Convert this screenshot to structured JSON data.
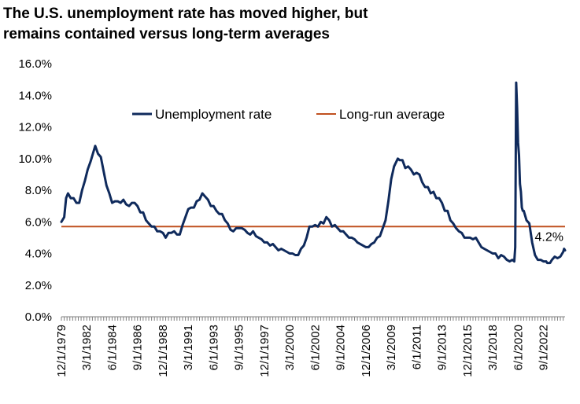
{
  "title": {
    "line1": "The U.S. unemployment rate has moved higher, but",
    "line2": "remains contained versus long-term averages"
  },
  "chart_data": {
    "type": "line",
    "title": "The U.S. unemployment rate has moved higher, but remains contained versus long-term averages",
    "xlabel": "",
    "ylabel": "",
    "ylim": [
      0,
      16
    ],
    "xlim": [
      "1979-12-01",
      "2024-08-01"
    ],
    "y_ticks": [
      "0.0%",
      "2.0%",
      "4.0%",
      "6.0%",
      "8.0%",
      "10.0%",
      "12.0%",
      "14.0%",
      "16.0%"
    ],
    "x_ticks": [
      "12/1/1979",
      "3/1/1982",
      "6/1/1984",
      "9/1/1986",
      "12/1/1988",
      "3/1/1991",
      "6/1/1993",
      "9/1/1995",
      "12/1/1997",
      "3/1/2000",
      "6/1/2002",
      "9/1/2004",
      "12/1/2006",
      "3/1/2009",
      "6/1/2011",
      "9/1/2013",
      "12/1/2015",
      "3/1/2018",
      "6/1/2020",
      "9/1/2022"
    ],
    "grid": false,
    "legend": "top-center",
    "end_label": "4.2%",
    "colors": {
      "unemployment": "#0f2a5c",
      "long_run": "#c0501f"
    },
    "series": [
      {
        "name": "Unemployment rate",
        "points": [
          [
            "1979-12-01",
            6.0
          ],
          [
            "1980-03-01",
            6.3
          ],
          [
            "1980-05-01",
            7.5
          ],
          [
            "1980-07-01",
            7.8
          ],
          [
            "1980-10-01",
            7.5
          ],
          [
            "1981-01-01",
            7.5
          ],
          [
            "1981-04-01",
            7.2
          ],
          [
            "1981-07-01",
            7.2
          ],
          [
            "1981-10-01",
            8.0
          ],
          [
            "1982-01-01",
            8.6
          ],
          [
            "1982-04-01",
            9.3
          ],
          [
            "1982-07-01",
            9.8
          ],
          [
            "1982-10-01",
            10.4
          ],
          [
            "1982-12-01",
            10.8
          ],
          [
            "1983-03-01",
            10.3
          ],
          [
            "1983-06-01",
            10.1
          ],
          [
            "1983-09-01",
            9.2
          ],
          [
            "1983-12-01",
            8.3
          ],
          [
            "1984-03-01",
            7.8
          ],
          [
            "1984-06-01",
            7.2
          ],
          [
            "1984-09-01",
            7.3
          ],
          [
            "1984-12-01",
            7.3
          ],
          [
            "1985-03-01",
            7.2
          ],
          [
            "1985-06-01",
            7.4
          ],
          [
            "1985-09-01",
            7.1
          ],
          [
            "1985-12-01",
            7.0
          ],
          [
            "1986-03-01",
            7.2
          ],
          [
            "1986-06-01",
            7.2
          ],
          [
            "1986-09-01",
            7.0
          ],
          [
            "1986-12-01",
            6.6
          ],
          [
            "1987-03-01",
            6.6
          ],
          [
            "1987-06-01",
            6.1
          ],
          [
            "1987-09-01",
            5.9
          ],
          [
            "1987-12-01",
            5.7
          ],
          [
            "1988-03-01",
            5.7
          ],
          [
            "1988-06-01",
            5.4
          ],
          [
            "1988-09-01",
            5.4
          ],
          [
            "1988-12-01",
            5.3
          ],
          [
            "1989-03-01",
            5.0
          ],
          [
            "1989-06-01",
            5.3
          ],
          [
            "1989-09-01",
            5.3
          ],
          [
            "1989-12-01",
            5.4
          ],
          [
            "1990-03-01",
            5.2
          ],
          [
            "1990-06-01",
            5.2
          ],
          [
            "1990-09-01",
            5.8
          ],
          [
            "1990-12-01",
            6.3
          ],
          [
            "1991-03-01",
            6.8
          ],
          [
            "1991-06-01",
            6.9
          ],
          [
            "1991-09-01",
            6.9
          ],
          [
            "1991-12-01",
            7.3
          ],
          [
            "1992-03-01",
            7.4
          ],
          [
            "1992-06-01",
            7.8
          ],
          [
            "1992-09-01",
            7.6
          ],
          [
            "1992-12-01",
            7.4
          ],
          [
            "1993-03-01",
            7.0
          ],
          [
            "1993-06-01",
            7.0
          ],
          [
            "1993-09-01",
            6.7
          ],
          [
            "1993-12-01",
            6.5
          ],
          [
            "1994-03-01",
            6.5
          ],
          [
            "1994-06-01",
            6.1
          ],
          [
            "1994-09-01",
            5.9
          ],
          [
            "1994-12-01",
            5.5
          ],
          [
            "1995-03-01",
            5.4
          ],
          [
            "1995-06-01",
            5.6
          ],
          [
            "1995-09-01",
            5.6
          ],
          [
            "1995-12-01",
            5.6
          ],
          [
            "1996-03-01",
            5.5
          ],
          [
            "1996-06-01",
            5.3
          ],
          [
            "1996-09-01",
            5.2
          ],
          [
            "1996-12-01",
            5.4
          ],
          [
            "1997-03-01",
            5.1
          ],
          [
            "1997-06-01",
            5.0
          ],
          [
            "1997-09-01",
            4.9
          ],
          [
            "1997-12-01",
            4.7
          ],
          [
            "1998-03-01",
            4.7
          ],
          [
            "1998-06-01",
            4.5
          ],
          [
            "1998-09-01",
            4.6
          ],
          [
            "1998-12-01",
            4.4
          ],
          [
            "1999-03-01",
            4.2
          ],
          [
            "1999-06-01",
            4.3
          ],
          [
            "1999-09-01",
            4.2
          ],
          [
            "1999-12-01",
            4.1
          ],
          [
            "2000-03-01",
            4.0
          ],
          [
            "2000-06-01",
            4.0
          ],
          [
            "2000-09-01",
            3.9
          ],
          [
            "2000-12-01",
            3.9
          ],
          [
            "2001-03-01",
            4.3
          ],
          [
            "2001-06-01",
            4.5
          ],
          [
            "2001-09-01",
            5.0
          ],
          [
            "2001-12-01",
            5.7
          ],
          [
            "2002-03-01",
            5.7
          ],
          [
            "2002-06-01",
            5.8
          ],
          [
            "2002-09-01",
            5.7
          ],
          [
            "2002-12-01",
            6.0
          ],
          [
            "2003-03-01",
            5.9
          ],
          [
            "2003-06-01",
            6.3
          ],
          [
            "2003-09-01",
            6.1
          ],
          [
            "2003-12-01",
            5.7
          ],
          [
            "2004-03-01",
            5.8
          ],
          [
            "2004-06-01",
            5.6
          ],
          [
            "2004-09-01",
            5.4
          ],
          [
            "2004-12-01",
            5.4
          ],
          [
            "2005-03-01",
            5.2
          ],
          [
            "2005-06-01",
            5.0
          ],
          [
            "2005-09-01",
            5.0
          ],
          [
            "2005-12-01",
            4.9
          ],
          [
            "2006-03-01",
            4.7
          ],
          [
            "2006-06-01",
            4.6
          ],
          [
            "2006-09-01",
            4.5
          ],
          [
            "2006-12-01",
            4.4
          ],
          [
            "2007-03-01",
            4.4
          ],
          [
            "2007-06-01",
            4.6
          ],
          [
            "2007-09-01",
            4.7
          ],
          [
            "2007-12-01",
            5.0
          ],
          [
            "2008-03-01",
            5.1
          ],
          [
            "2008-06-01",
            5.6
          ],
          [
            "2008-09-01",
            6.1
          ],
          [
            "2008-12-01",
            7.3
          ],
          [
            "2009-03-01",
            8.7
          ],
          [
            "2009-06-01",
            9.5
          ],
          [
            "2009-10-01",
            10.0
          ],
          [
            "2009-12-01",
            9.9
          ],
          [
            "2010-03-01",
            9.9
          ],
          [
            "2010-06-01",
            9.4
          ],
          [
            "2010-09-01",
            9.5
          ],
          [
            "2010-12-01",
            9.3
          ],
          [
            "2011-03-01",
            9.0
          ],
          [
            "2011-06-01",
            9.1
          ],
          [
            "2011-09-01",
            9.0
          ],
          [
            "2011-12-01",
            8.5
          ],
          [
            "2012-03-01",
            8.2
          ],
          [
            "2012-06-01",
            8.2
          ],
          [
            "2012-09-01",
            7.8
          ],
          [
            "2012-12-01",
            7.9
          ],
          [
            "2013-03-01",
            7.5
          ],
          [
            "2013-06-01",
            7.5
          ],
          [
            "2013-09-01",
            7.2
          ],
          [
            "2013-12-01",
            6.7
          ],
          [
            "2014-03-01",
            6.7
          ],
          [
            "2014-06-01",
            6.1
          ],
          [
            "2014-09-01",
            5.9
          ],
          [
            "2014-12-01",
            5.6
          ],
          [
            "2015-03-01",
            5.4
          ],
          [
            "2015-06-01",
            5.3
          ],
          [
            "2015-09-01",
            5.0
          ],
          [
            "2015-12-01",
            5.0
          ],
          [
            "2016-03-01",
            5.0
          ],
          [
            "2016-06-01",
            4.9
          ],
          [
            "2016-09-01",
            5.0
          ],
          [
            "2016-12-01",
            4.7
          ],
          [
            "2017-03-01",
            4.4
          ],
          [
            "2017-06-01",
            4.3
          ],
          [
            "2017-09-01",
            4.2
          ],
          [
            "2017-12-01",
            4.1
          ],
          [
            "2018-03-01",
            4.0
          ],
          [
            "2018-06-01",
            4.0
          ],
          [
            "2018-09-01",
            3.7
          ],
          [
            "2018-12-01",
            3.9
          ],
          [
            "2019-03-01",
            3.8
          ],
          [
            "2019-06-01",
            3.6
          ],
          [
            "2019-09-01",
            3.5
          ],
          [
            "2019-12-01",
            3.6
          ],
          [
            "2020-02-01",
            3.5
          ],
          [
            "2020-03-01",
            4.4
          ],
          [
            "2020-04-01",
            14.8
          ],
          [
            "2020-05-01",
            13.2
          ],
          [
            "2020-06-01",
            11.0
          ],
          [
            "2020-07-01",
            10.2
          ],
          [
            "2020-08-01",
            8.4
          ],
          [
            "2020-09-01",
            7.9
          ],
          [
            "2020-10-01",
            6.9
          ],
          [
            "2020-11-01",
            6.7
          ],
          [
            "2020-12-01",
            6.7
          ],
          [
            "2021-03-01",
            6.1
          ],
          [
            "2021-06-01",
            5.9
          ],
          [
            "2021-09-01",
            4.7
          ],
          [
            "2021-12-01",
            3.9
          ],
          [
            "2022-03-01",
            3.6
          ],
          [
            "2022-06-01",
            3.6
          ],
          [
            "2022-09-01",
            3.5
          ],
          [
            "2022-12-01",
            3.5
          ],
          [
            "2023-01-01",
            3.4
          ],
          [
            "2023-04-01",
            3.4
          ],
          [
            "2023-06-01",
            3.6
          ],
          [
            "2023-09-01",
            3.8
          ],
          [
            "2023-12-01",
            3.7
          ],
          [
            "2024-03-01",
            3.8
          ],
          [
            "2024-06-01",
            4.1
          ],
          [
            "2024-07-01",
            4.3
          ],
          [
            "2024-08-01",
            4.2
          ]
        ]
      },
      {
        "name": "Long-run average",
        "value": 5.7
      }
    ]
  }
}
